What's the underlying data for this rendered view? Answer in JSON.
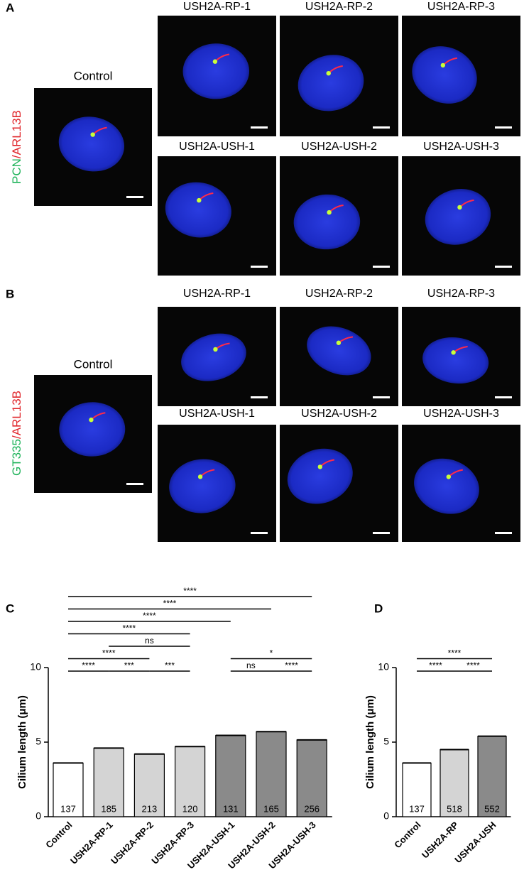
{
  "panels": [
    {
      "label": "A",
      "channel": {
        "green": "PCN",
        "red": "/ARL13B"
      },
      "control_title": "Control",
      "titles": [
        "USH2A-RP-1",
        "USH2A-RP-2",
        "USH2A-RP-3",
        "USH2A-USH-1",
        "USH2A-USH-2",
        "USH2A-USH-3"
      ]
    },
    {
      "label": "B",
      "channel": {
        "green": "GT335",
        "red": "/ARL13B"
      },
      "control_title": "Control",
      "titles": [
        "USH2A-RP-1",
        "USH2A-RP-2",
        "USH2A-RP-3",
        "USH2A-USH-1",
        "USH2A-USH-2",
        "USH2A-USH-3"
      ]
    }
  ],
  "chart_data": [
    {
      "type": "bar",
      "panel_label": "C",
      "ylabel": "Cilium length (μm)",
      "categories": [
        "Control",
        "USH2A-RP-1",
        "USH2A-RP-2",
        "USH2A-RP-3",
        "USH2A-USH-1",
        "USH2A-USH-2",
        "USH2A-USH-3"
      ],
      "values": [
        3.6,
        4.6,
        4.2,
        4.7,
        5.45,
        5.7,
        5.15
      ],
      "n": [
        137,
        185,
        213,
        120,
        131,
        165,
        256
      ],
      "colors": [
        "#ffffff",
        "#d4d4d4",
        "#d4d4d4",
        "#d4d4d4",
        "#8a8a8a",
        "#8a8a8a",
        "#8a8a8a"
      ],
      "ylim": [
        0,
        10
      ],
      "yticks": [
        0,
        5,
        10
      ],
      "significance": [
        {
          "from": 0,
          "to": 1,
          "label": "****"
        },
        {
          "from": 1,
          "to": 2,
          "label": "***"
        },
        {
          "from": 2,
          "to": 3,
          "label": "***"
        },
        {
          "from": 4,
          "to": 5,
          "label": "ns"
        },
        {
          "from": 5,
          "to": 6,
          "label": "****"
        },
        {
          "from": 0,
          "to": 2,
          "label": "****"
        },
        {
          "from": 1,
          "to": 3,
          "label": "ns"
        },
        {
          "from": 4,
          "to": 6,
          "label": "*"
        },
        {
          "from": 0,
          "to": 3,
          "label": "****"
        },
        {
          "from": 0,
          "to": 4,
          "label": "****"
        },
        {
          "from": 0,
          "to": 5,
          "label": "****"
        },
        {
          "from": 0,
          "to": 6,
          "label": "****"
        }
      ]
    },
    {
      "type": "bar",
      "panel_label": "D",
      "ylabel": "Cilium length (μm)",
      "categories": [
        "Control",
        "USH2A-RP",
        "USH2A-USH"
      ],
      "values": [
        3.6,
        4.5,
        5.4
      ],
      "n": [
        137,
        518,
        552
      ],
      "colors": [
        "#ffffff",
        "#d4d4d4",
        "#8a8a8a"
      ],
      "ylim": [
        0,
        10
      ],
      "yticks": [
        0,
        5,
        10
      ],
      "significance": [
        {
          "from": 0,
          "to": 1,
          "label": "****"
        },
        {
          "from": 1,
          "to": 2,
          "label": "****"
        },
        {
          "from": 0,
          "to": 2,
          "label": "****"
        }
      ]
    }
  ]
}
